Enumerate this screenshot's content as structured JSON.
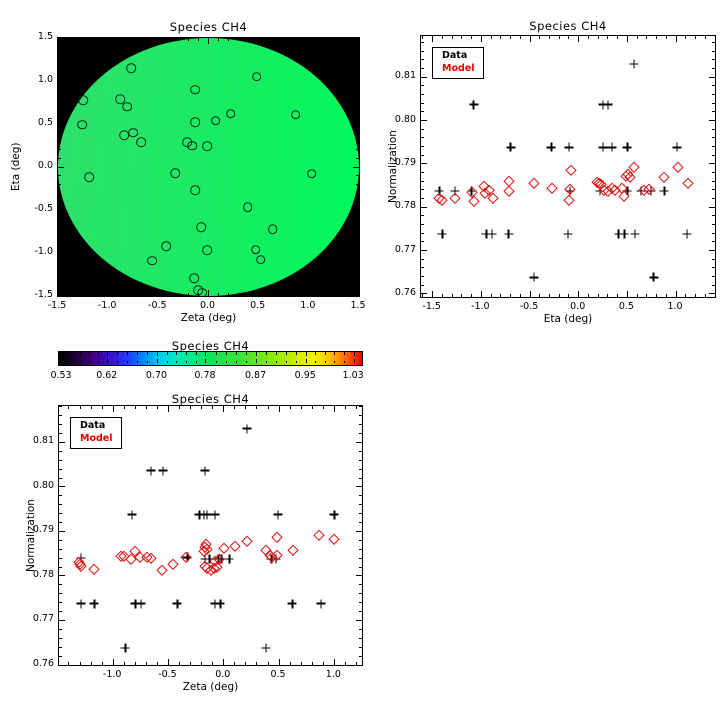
{
  "figure": {
    "background": "#ffffff",
    "text_color": "#000000"
  },
  "chart_data": [
    {
      "id": "fov_map",
      "type": "scatter",
      "title": "Species CH4",
      "xlabel": "Zeta (deg)",
      "ylabel": "Eta (deg)",
      "xlim": [
        -1.5,
        1.5
      ],
      "ylim": [
        -1.5,
        1.5
      ],
      "xticks": {
        "values": [
          -1.5,
          -1.0,
          -0.5,
          0.0,
          0.5,
          1.0,
          1.5
        ],
        "labels": [
          "-1.5",
          "-1.0",
          "-0.5",
          "0.0",
          "0.5",
          "1.0",
          "1.5"
        ],
        "minor_step": 0.1
      },
      "yticks": {
        "values": [
          -1.5,
          -1.0,
          -0.5,
          0.0,
          0.5,
          1.0,
          1.5
        ],
        "labels": [
          "-1.5",
          "-1.0",
          "-0.5",
          "0.0",
          "0.5",
          "1.0",
          "1.5"
        ],
        "minor_step": 0.1
      },
      "grid": false,
      "disk": {
        "center": [
          0,
          0
        ],
        "radius": 1.5,
        "background": "#000000",
        "color_stops": [
          [
            "#2fe06c",
            0
          ],
          [
            "#17ec61",
            55
          ],
          [
            "#00fa5c",
            100
          ]
        ]
      },
      "series": [
        {
          "name": "sources",
          "marker": "circle",
          "color": "#0d2516",
          "points": [
            [
              -0.77,
              1.15
            ],
            [
              0.48,
              1.05
            ],
            [
              -0.13,
              0.9
            ],
            [
              -1.25,
              0.78
            ],
            [
              -0.88,
              0.79
            ],
            [
              -0.81,
              0.7
            ],
            [
              0.22,
              0.62
            ],
            [
              0.87,
              0.61
            ],
            [
              0.07,
              0.54
            ],
            [
              -0.13,
              0.52
            ],
            [
              -1.26,
              0.49
            ],
            [
              -0.84,
              0.37
            ],
            [
              -0.75,
              0.4
            ],
            [
              -0.67,
              0.29
            ],
            [
              -0.21,
              0.29
            ],
            [
              -0.16,
              0.25
            ],
            [
              -0.01,
              0.24
            ],
            [
              -1.19,
              -0.12
            ],
            [
              -0.33,
              -0.07
            ],
            [
              1.03,
              -0.08
            ],
            [
              -0.13,
              -0.27
            ],
            [
              0.39,
              -0.47
            ],
            [
              -0.07,
              -0.7
            ],
            [
              0.64,
              -0.72
            ],
            [
              -0.42,
              -0.92
            ],
            [
              -0.01,
              -0.97
            ],
            [
              0.47,
              -0.96
            ],
            [
              0.52,
              -1.08
            ],
            [
              -0.56,
              -1.09
            ],
            [
              -0.14,
              -1.29
            ],
            [
              -0.1,
              -1.43
            ],
            [
              -0.06,
              -1.46
            ]
          ]
        }
      ]
    },
    {
      "id": "norm_vs_eta",
      "type": "scatter",
      "title": "Species CH4",
      "xlabel": "Eta (deg)",
      "ylabel": "Normalization",
      "xlim": [
        -1.62,
        1.4
      ],
      "ylim": [
        0.7593,
        0.8195
      ],
      "xticks": {
        "values": [
          -1.5,
          -1.0,
          -0.5,
          0.0,
          0.5,
          1.0
        ],
        "labels": [
          "-1.5",
          "-1.0",
          "-0.5",
          "0.0",
          "0.5",
          "1.0"
        ],
        "minor_step": 0.1
      },
      "yticks": {
        "values": [
          0.76,
          0.77,
          0.78,
          0.79,
          0.8,
          0.81
        ],
        "labels": [
          "0.76",
          "0.77",
          "0.78",
          "0.79",
          "0.80",
          "0.81"
        ],
        "minor_step": 0.002
      },
      "grid": false,
      "legend": {
        "items": [
          {
            "label": "Data",
            "color": "#000000"
          },
          {
            "label": "Model",
            "color": "#e00000"
          }
        ]
      },
      "series": [
        {
          "name": "Data",
          "marker": "plus",
          "color": "#000000",
          "points": [
            [
              0.57,
              0.8131
            ],
            [
              -1.08,
              0.8037
            ],
            [
              0.25,
              0.8037
            ],
            [
              0.3,
              0.8037
            ],
            [
              -0.7,
              0.7938
            ],
            [
              -0.28,
              0.7938
            ],
            [
              -0.1,
              0.7938
            ],
            [
              0.25,
              0.7938
            ],
            [
              0.34,
              0.7938
            ],
            [
              0.5,
              0.7938
            ],
            [
              1.01,
              0.7938
            ],
            [
              -1.43,
              0.7838
            ],
            [
              -1.27,
              0.7838
            ],
            [
              -1.1,
              0.7838
            ],
            [
              -0.09,
              0.7838
            ],
            [
              0.22,
              0.7838
            ],
            [
              0.5,
              0.7838
            ],
            [
              0.64,
              0.7838
            ],
            [
              0.74,
              0.7838
            ],
            [
              0.88,
              0.7838
            ],
            [
              -1.4,
              0.7738
            ],
            [
              -0.95,
              0.7738
            ],
            [
              -0.89,
              0.7738
            ],
            [
              -0.72,
              0.7738
            ],
            [
              -0.11,
              0.7738
            ],
            [
              0.41,
              0.7738
            ],
            [
              0.47,
              0.7738
            ],
            [
              0.58,
              0.7738
            ],
            [
              1.11,
              0.7738
            ],
            [
              -0.46,
              0.7638
            ],
            [
              0.77,
              0.7638
            ]
          ]
        },
        {
          "name": "Model",
          "marker": "diamond",
          "color": "#dd1111",
          "points": [
            [
              -1.43,
              0.7822
            ],
            [
              -1.4,
              0.7817
            ],
            [
              -1.27,
              0.7821
            ],
            [
              -1.1,
              0.7836
            ],
            [
              -1.08,
              0.7814
            ],
            [
              -0.97,
              0.785
            ],
            [
              -0.96,
              0.7833
            ],
            [
              -0.92,
              0.784
            ],
            [
              -0.88,
              0.7822
            ],
            [
              -0.72,
              0.786
            ],
            [
              -0.72,
              0.7838
            ],
            [
              -0.46,
              0.7857
            ],
            [
              -0.27,
              0.7845
            ],
            [
              -0.08,
              0.7886
            ],
            [
              -0.09,
              0.7842
            ],
            [
              -0.1,
              0.7817
            ],
            [
              0.19,
              0.7858
            ],
            [
              0.21,
              0.7856
            ],
            [
              0.23,
              0.7853
            ],
            [
              0.26,
              0.784
            ],
            [
              0.3,
              0.7837
            ],
            [
              0.34,
              0.7845
            ],
            [
              0.37,
              0.784
            ],
            [
              0.44,
              0.7845
            ],
            [
              0.47,
              0.7825
            ],
            [
              0.49,
              0.7872
            ],
            [
              0.51,
              0.7876
            ],
            [
              0.53,
              0.7869
            ],
            [
              0.57,
              0.7893
            ],
            [
              0.67,
              0.784
            ],
            [
              0.72,
              0.7841
            ],
            [
              0.88,
              0.787
            ],
            [
              1.02,
              0.7894
            ],
            [
              1.12,
              0.7855
            ]
          ]
        }
      ]
    },
    {
      "id": "colorbar",
      "type": "colorbar",
      "title": "Species CH4",
      "vmin": 0.53,
      "vmax": 1.03,
      "tick_labels": [
        "0.53",
        "0.62",
        "0.70",
        "0.78",
        "0.87",
        "0.95",
        "1.03"
      ],
      "tick_positions_pct": [
        1.0,
        16.1,
        32.5,
        48.5,
        65.2,
        81.6,
        97.4
      ],
      "minor_ticks_per_interval": 4,
      "gradient": [
        [
          "#000000",
          0
        ],
        [
          "#22003c",
          6
        ],
        [
          "#44008c",
          12
        ],
        [
          "#3519cd",
          18
        ],
        [
          "#1f3fff",
          23
        ],
        [
          "#008cff",
          28
        ],
        [
          "#00c8f0",
          33
        ],
        [
          "#00e6c8",
          38
        ],
        [
          "#00e896",
          43
        ],
        [
          "#0ce364",
          48
        ],
        [
          "#28e14b",
          54
        ],
        [
          "#40e43c",
          60
        ],
        [
          "#6ee91e",
          67
        ],
        [
          "#a0ea00",
          73
        ],
        [
          "#d2ee00",
          79
        ],
        [
          "#f4f400",
          84
        ],
        [
          "#ffc800",
          89
        ],
        [
          "#ff8400",
          93
        ],
        [
          "#ff3c00",
          97
        ],
        [
          "#e80000",
          100
        ]
      ]
    },
    {
      "id": "norm_vs_zeta",
      "type": "scatter",
      "title": "Species CH4",
      "xlabel": "Zeta (deg)",
      "ylabel": "Normalization",
      "xlim": [
        -1.49,
        1.25
      ],
      "ylim": [
        0.76,
        0.8182
      ],
      "xticks": {
        "values": [
          -1.0,
          -0.5,
          0.0,
          0.5,
          1.0
        ],
        "labels": [
          "-1.0",
          "-0.5",
          "0.0",
          "0.5",
          "1.0"
        ],
        "minor_step": 0.1
      },
      "yticks": {
        "values": [
          0.76,
          0.77,
          0.78,
          0.79,
          0.8,
          0.81
        ],
        "labels": [
          "0.76",
          "0.77",
          "0.78",
          "0.79",
          "0.80",
          "0.81"
        ],
        "minor_step": 0.002
      },
      "grid": false,
      "legend": {
        "items": [
          {
            "label": "Data",
            "color": "#000000"
          },
          {
            "label": "Model",
            "color": "#e00000"
          }
        ]
      },
      "series": [
        {
          "name": "Data",
          "marker": "plus",
          "color": "#000000",
          "points": [
            [
              0.21,
              0.8131
            ],
            [
              -0.66,
              0.8037
            ],
            [
              -0.55,
              0.8037
            ],
            [
              -0.17,
              0.8037
            ],
            [
              -0.83,
              0.7938
            ],
            [
              -0.22,
              0.7938
            ],
            [
              -0.18,
              0.7938
            ],
            [
              -0.15,
              0.7938
            ],
            [
              -0.08,
              0.7938
            ],
            [
              0.49,
              0.7938
            ],
            [
              1.0,
              0.7938
            ],
            [
              -1.29,
              0.784
            ],
            [
              -0.33,
              0.7842
            ],
            [
              -0.17,
              0.7838
            ],
            [
              -0.13,
              0.7838
            ],
            [
              -0.05,
              0.7838
            ],
            [
              -0.02,
              0.7838
            ],
            [
              0.05,
              0.7838
            ],
            [
              0.43,
              0.7838
            ],
            [
              0.47,
              0.7838
            ],
            [
              -1.29,
              0.7738
            ],
            [
              -1.17,
              0.7738
            ],
            [
              -0.8,
              0.7738
            ],
            [
              -0.75,
              0.7738
            ],
            [
              -0.42,
              0.7738
            ],
            [
              -0.08,
              0.7738
            ],
            [
              -0.03,
              0.7738
            ],
            [
              0.62,
              0.7738
            ],
            [
              0.88,
              0.7738
            ],
            [
              -0.89,
              0.7638
            ],
            [
              0.38,
              0.7638
            ]
          ]
        },
        {
          "name": "Model",
          "marker": "diamond",
          "color": "#dd1111",
          "points": [
            [
              -1.31,
              0.7831
            ],
            [
              -1.3,
              0.7827
            ],
            [
              -1.29,
              0.7822
            ],
            [
              -1.17,
              0.7815
            ],
            [
              -0.93,
              0.7845
            ],
            [
              -0.9,
              0.7846
            ],
            [
              -0.84,
              0.7839
            ],
            [
              -0.8,
              0.7856
            ],
            [
              -0.76,
              0.7843
            ],
            [
              -0.69,
              0.7843
            ],
            [
              -0.66,
              0.7841
            ],
            [
              -0.56,
              0.7814
            ],
            [
              -0.46,
              0.7828
            ],
            [
              -0.34,
              0.7843
            ],
            [
              -0.18,
              0.7856
            ],
            [
              -0.17,
              0.7866
            ],
            [
              -0.16,
              0.7871
            ],
            [
              -0.15,
              0.786
            ],
            [
              -0.17,
              0.7822
            ],
            [
              -0.15,
              0.7817
            ],
            [
              -0.12,
              0.7814
            ],
            [
              -0.09,
              0.7817
            ],
            [
              -0.06,
              0.7821
            ],
            [
              -0.08,
              0.7833
            ],
            [
              -0.04,
              0.7839
            ],
            [
              0.0,
              0.7863
            ],
            [
              0.1,
              0.7868
            ],
            [
              0.21,
              0.7879
            ],
            [
              0.38,
              0.7858
            ],
            [
              0.42,
              0.7847
            ],
            [
              0.44,
              0.7843
            ],
            [
              0.48,
              0.7847
            ],
            [
              0.48,
              0.7888
            ],
            [
              0.63,
              0.7858
            ],
            [
              0.86,
              0.7893
            ],
            [
              1.0,
              0.7884
            ]
          ]
        }
      ]
    }
  ]
}
